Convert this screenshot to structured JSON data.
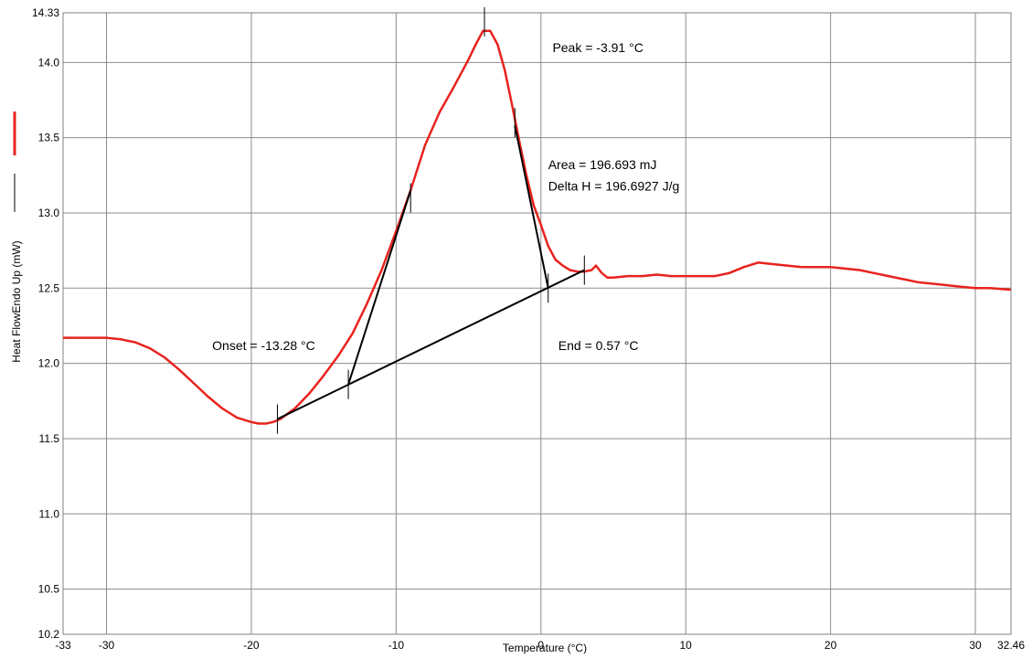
{
  "chart_data": {
    "type": "line",
    "title": "",
    "xlabel": "Temperature (°C)",
    "ylabel": "Heat FlowEndo Up (mW)",
    "xlim": [
      -33,
      32.46
    ],
    "ylim": [
      10.2,
      14.33
    ],
    "grid": true,
    "x_tick_labels": [
      "-33",
      "-30",
      "-20",
      "-10",
      "0",
      "10",
      "20",
      "30",
      "32.46"
    ],
    "x_ticks": [
      -33,
      -30,
      -20,
      -10,
      0,
      10,
      20,
      30,
      32.46
    ],
    "y_tick_labels": [
      "10.2",
      "10.5",
      "11.0",
      "11.5",
      "12.0",
      "12.5",
      "13.0",
      "13.5",
      "14.0",
      "14.33"
    ],
    "y_ticks": [
      10.2,
      10.5,
      11.0,
      11.5,
      12.0,
      12.5,
      13.0,
      13.5,
      14.0,
      14.33
    ],
    "series": [
      {
        "color": "#e8231e",
        "x": [
          -33,
          -30,
          -29,
          -28,
          -27,
          -26,
          -25,
          -24,
          -23,
          -22,
          -21,
          -20,
          -19.5,
          -19,
          -18.5,
          -18,
          -17,
          -16,
          -15,
          -14,
          -13,
          -12,
          -11,
          -10,
          -9,
          -8,
          -7,
          -6,
          -5,
          -4.5,
          -4,
          -3.5,
          -3,
          -2.5,
          -2,
          -1.5,
          -1,
          -0.5,
          0,
          0.5,
          1,
          1.5,
          2,
          2.5,
          3,
          3.5,
          3.8,
          4.2,
          4.6,
          5,
          6,
          7,
          8,
          9,
          10,
          11,
          12,
          13,
          14,
          15,
          16,
          17,
          18,
          19,
          20,
          21,
          22,
          23,
          24,
          25,
          26,
          27,
          28,
          29,
          30,
          31,
          32.46
        ],
        "y": [
          12.17,
          12.17,
          12.16,
          12.14,
          12.1,
          12.04,
          11.96,
          11.87,
          11.78,
          11.7,
          11.64,
          11.61,
          11.6,
          11.6,
          11.61,
          11.63,
          11.7,
          11.8,
          11.92,
          12.05,
          12.2,
          12.4,
          12.62,
          12.88,
          13.15,
          13.45,
          13.67,
          13.84,
          14.02,
          14.12,
          14.21,
          14.21,
          14.12,
          13.95,
          13.72,
          13.48,
          13.25,
          13.05,
          12.92,
          12.78,
          12.69,
          12.65,
          12.62,
          12.61,
          12.61,
          12.62,
          12.65,
          12.6,
          12.57,
          12.57,
          12.58,
          12.58,
          12.59,
          12.58,
          12.58,
          12.58,
          12.58,
          12.6,
          12.64,
          12.67,
          12.66,
          12.65,
          12.64,
          12.64,
          12.64,
          12.63,
          12.62,
          12.6,
          12.58,
          12.56,
          12.54,
          12.53,
          12.52,
          12.51,
          12.5,
          12.5,
          12.49
        ]
      }
    ],
    "construction_lines": [
      {
        "x1": -18.2,
        "y1": 11.63,
        "x2": 3.0,
        "y2": 12.62
      },
      {
        "x1": -13.3,
        "y1": 11.86,
        "x2": -9.0,
        "y2": 13.15
      },
      {
        "x1": -1.8,
        "y1": 13.58,
        "x2": 0.5,
        "y2": 12.5
      }
    ],
    "markers": [
      {
        "x": -18.2,
        "y": 11.63
      },
      {
        "x": -13.3,
        "y": 11.86
      },
      {
        "x": -9.0,
        "y": 13.1
      },
      {
        "x": -3.9,
        "y": 14.27
      },
      {
        "x": -1.8,
        "y": 13.6
      },
      {
        "x": 0.5,
        "y": 12.5
      },
      {
        "x": 3.0,
        "y": 12.62
      }
    ],
    "annotations": [
      {
        "text": "Peak = -3.91 °C",
        "x": 0.8,
        "y": 14.07
      },
      {
        "text": "Area = 196.693 mJ",
        "x": 0.5,
        "y": 13.29
      },
      {
        "text": "Delta H = 196.6927 J/g",
        "x": 0.5,
        "y": 13.15
      },
      {
        "text": "Onset = -13.28 °C",
        "x": -22.7,
        "y": 12.09
      },
      {
        "text": "End = 0.57 °C",
        "x": 1.2,
        "y": 12.09
      }
    ],
    "legend": {
      "placement": "left-vertical",
      "entries": [
        {
          "color": "#e8231e",
          "style": "solid"
        },
        {
          "color": "#000000",
          "style": "solid"
        }
      ]
    }
  }
}
